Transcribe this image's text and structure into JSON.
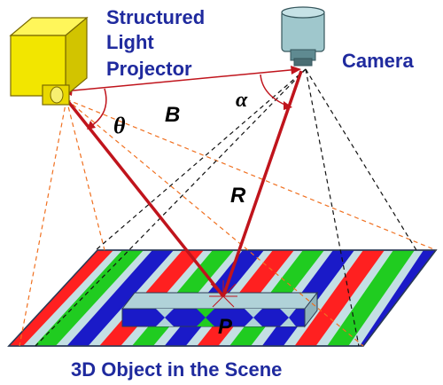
{
  "labels": {
    "projector_line1": "Structured",
    "projector_line2": "Light",
    "projector_line3": "Projector",
    "camera": "Camera",
    "baseline": "B",
    "range": "R",
    "theta": "θ",
    "alpha": "α",
    "point": "P",
    "caption": "3D Object in the Scene"
  },
  "stripe_colors": [
    "#ff2020",
    "#20cc20",
    "#1a1ac8"
  ],
  "colors": {
    "label_blue": "#1f2a9e",
    "ray_red": "#c0141c",
    "projector_yellow": "#f2e600",
    "camera_body": "#9fc7cc",
    "plane_light": "#c4dfe4"
  }
}
